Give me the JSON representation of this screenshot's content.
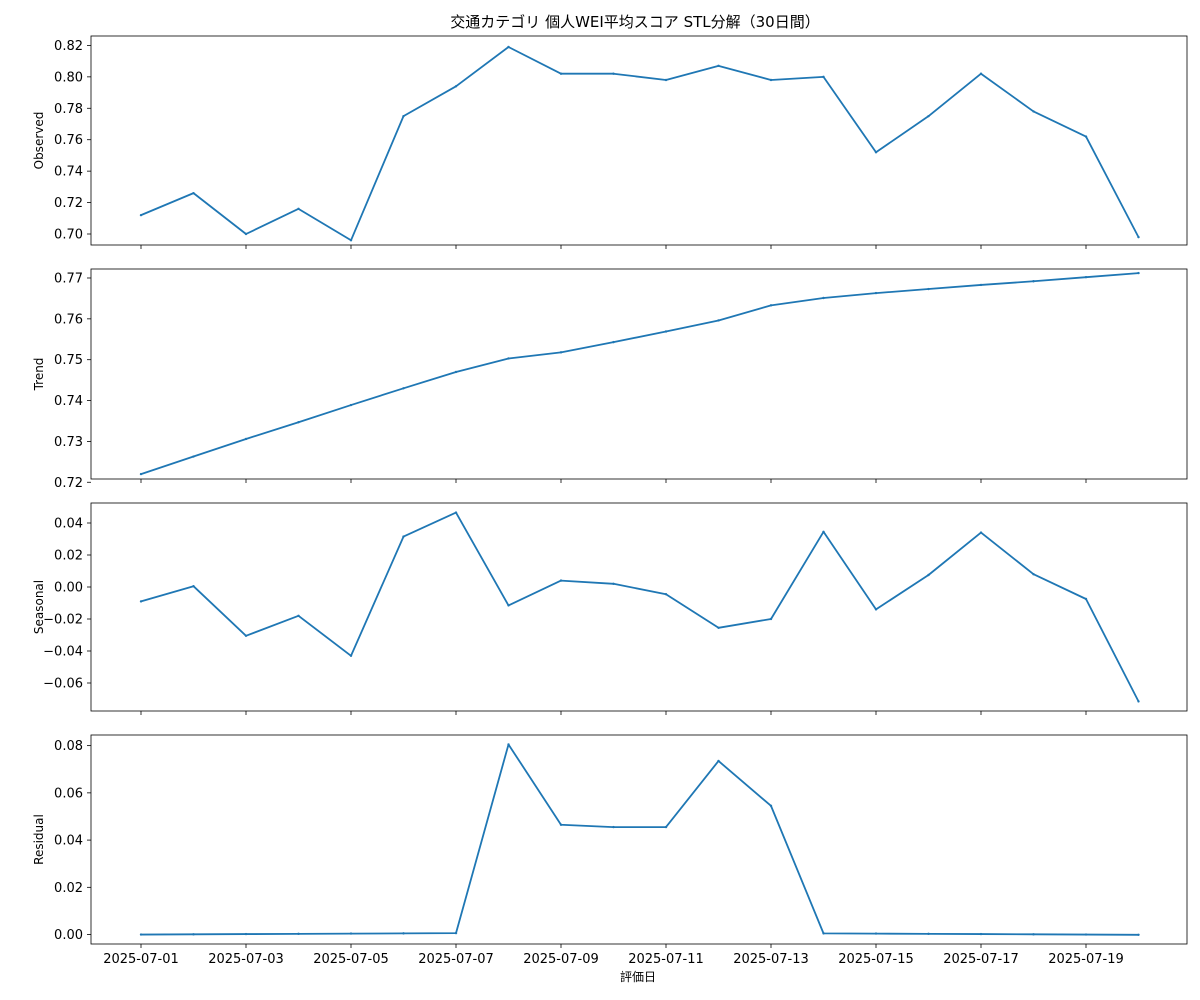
{
  "chart_data": {
    "type": "line",
    "title": "交通カテゴリ 個人WEI平均スコア STL分解（30日間）",
    "xlabel": "評価日",
    "x_tick_labels": [
      "2025-07-01",
      "2025-07-03",
      "2025-07-05",
      "2025-07-07",
      "2025-07-09",
      "2025-07-11",
      "2025-07-13",
      "2025-07-15",
      "2025-07-17",
      "2025-07-19"
    ],
    "x": [
      "2025-07-01",
      "2025-07-02",
      "2025-07-03",
      "2025-07-04",
      "2025-07-05",
      "2025-07-06",
      "2025-07-07",
      "2025-07-08",
      "2025-07-09",
      "2025-07-10",
      "2025-07-11",
      "2025-07-12",
      "2025-07-13",
      "2025-07-14",
      "2025-07-15",
      "2025-07-16",
      "2025-07-17",
      "2025-07-18",
      "2025-07-19",
      "2025-07-20"
    ],
    "line_color": "#1f77b4",
    "grid": false,
    "panels": [
      {
        "ylabel": "Observed",
        "ylim": [
          0.693,
          0.826
        ],
        "y_ticks": [
          0.7,
          0.72,
          0.74,
          0.76,
          0.78,
          0.8,
          0.82
        ],
        "y_tick_labels": [
          "0.70",
          "0.72",
          "0.74",
          "0.76",
          "0.78",
          "0.80",
          "0.82"
        ],
        "values": [
          0.712,
          0.726,
          0.7,
          0.716,
          0.696,
          0.775,
          0.794,
          0.819,
          0.802,
          0.802,
          0.798,
          0.807,
          0.798,
          0.8,
          0.752,
          0.775,
          0.802,
          0.778,
          0.762,
          0.698
        ]
      },
      {
        "ylabel": "Trend",
        "ylim": [
          0.7208,
          0.7722
        ],
        "y_ticks": [
          0.72,
          0.73,
          0.74,
          0.75,
          0.76,
          0.77
        ],
        "y_tick_labels": [
          "0.72",
          "0.73",
          "0.74",
          "0.75",
          "0.76",
          "0.77"
        ],
        "values": [
          0.722,
          0.7263,
          0.7306,
          0.7347,
          0.7389,
          0.743,
          0.747,
          0.7503,
          0.7518,
          0.7543,
          0.7569,
          0.7596,
          0.7633,
          0.7651,
          0.7663,
          0.7673,
          0.7683,
          0.7692,
          0.7702,
          0.7712
        ]
      },
      {
        "ylabel": "Seasonal",
        "ylim": [
          -0.0775,
          0.0525
        ],
        "y_ticks": [
          -0.06,
          -0.04,
          -0.02,
          0.0,
          0.02,
          0.04
        ],
        "y_tick_labels": [
          "−0.06",
          "−0.04",
          "−0.02",
          "0.00",
          "0.02",
          "0.04"
        ],
        "values": [
          -0.009,
          0.0005,
          -0.0305,
          -0.018,
          -0.043,
          0.0315,
          0.0465,
          -0.0115,
          0.004,
          0.002,
          -0.0045,
          -0.0255,
          -0.02,
          0.0345,
          -0.014,
          0.0075,
          0.034,
          0.008,
          -0.0075,
          -0.0715
        ]
      },
      {
        "ylabel": "Residual",
        "ylim": [
          -0.004,
          0.0845
        ],
        "y_ticks": [
          0.0,
          0.02,
          0.04,
          0.06,
          0.08
        ],
        "y_tick_labels": [
          "0.00",
          "0.02",
          "0.04",
          "0.06",
          "0.08"
        ],
        "values": [
          0.0,
          0.0001,
          0.0002,
          0.0003,
          0.0004,
          0.0005,
          0.0006,
          0.0805,
          0.0465,
          0.0455,
          0.0455,
          0.0735,
          0.0545,
          0.0005,
          0.0004,
          0.0003,
          0.0002,
          0.0001,
          0.0,
          -0.0001
        ]
      }
    ]
  }
}
